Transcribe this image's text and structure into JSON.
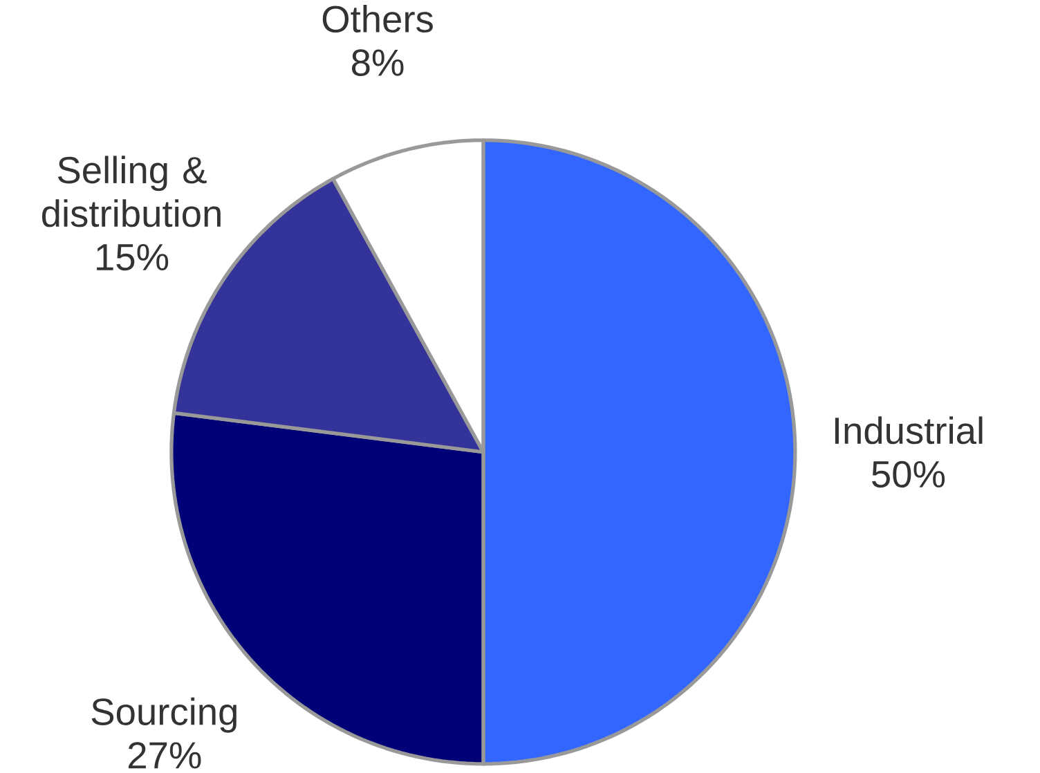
{
  "chart_data": {
    "type": "pie",
    "categories": [
      "Industrial",
      "Sourcing",
      "Selling & distribution",
      "Others"
    ],
    "values": [
      50,
      27,
      15,
      8
    ],
    "value_labels": [
      "50%",
      "27%",
      "15%",
      "8%"
    ],
    "colors": [
      "#3366ff",
      "#000077",
      "#333399",
      "#ffffff"
    ]
  }
}
